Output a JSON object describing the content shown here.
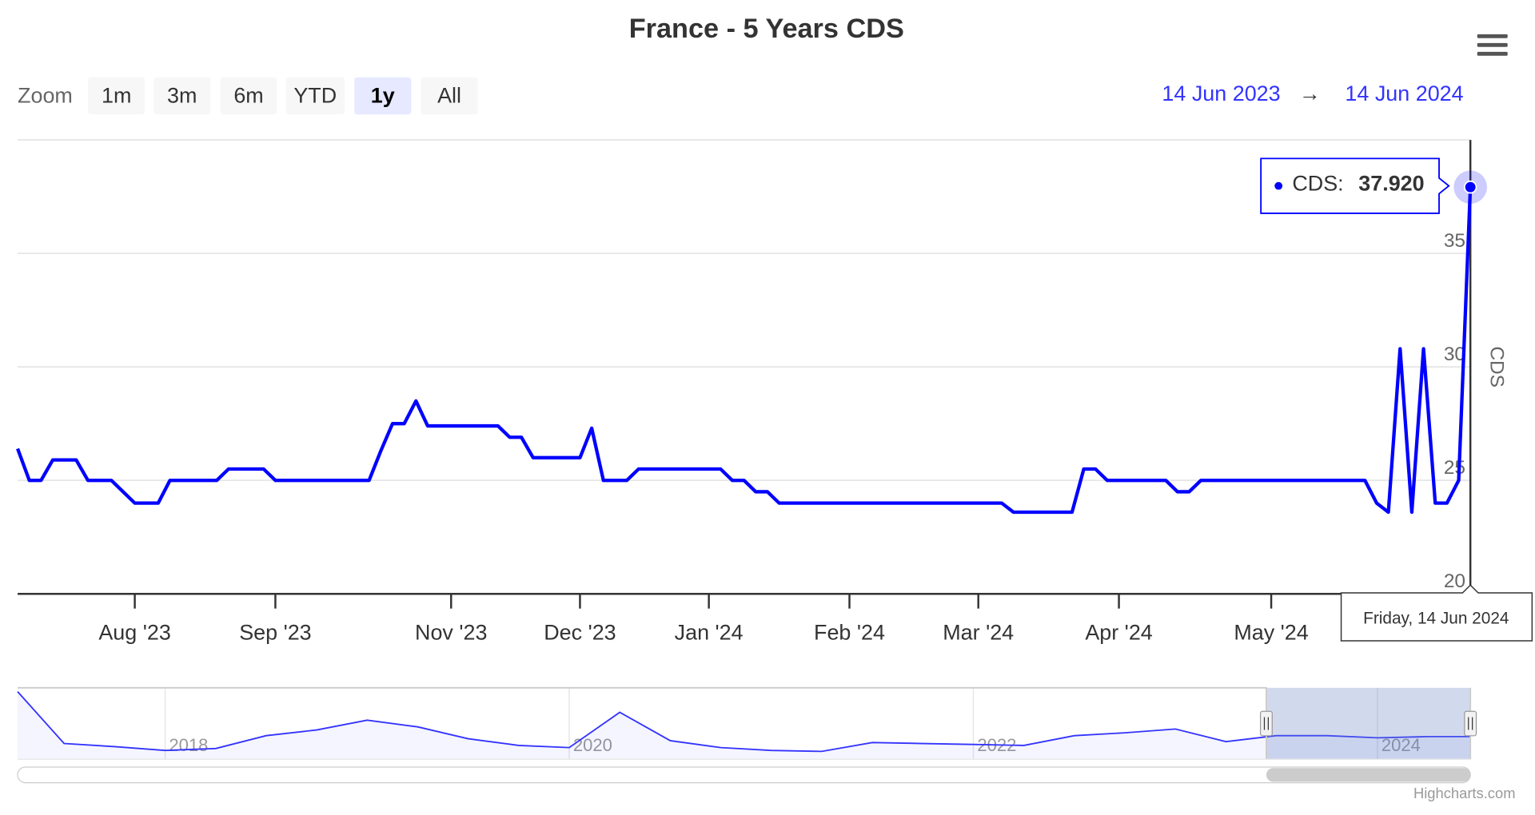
{
  "chart_data": {
    "type": "line",
    "title": "France - 5 Years CDS",
    "y_label": "CDS",
    "categories": [
      null,
      null,
      null,
      null,
      null,
      null,
      null,
      null,
      null,
      null,
      "Aug '23",
      null,
      null,
      null,
      null,
      null,
      null,
      null,
      null,
      null,
      null,
      null,
      "Sep '23",
      null,
      null,
      null,
      null,
      null,
      null,
      null,
      null,
      null,
      null,
      null,
      null,
      null,
      null,
      "Nov '23",
      null,
      null,
      null,
      null,
      null,
      null,
      null,
      null,
      null,
      null,
      "Dec '23",
      null,
      null,
      null,
      null,
      null,
      null,
      null,
      null,
      null,
      null,
      "Jan '24",
      null,
      null,
      null,
      null,
      null,
      null,
      null,
      null,
      null,
      null,
      null,
      "Feb '24",
      null,
      null,
      null,
      null,
      null,
      null,
      null,
      null,
      null,
      null,
      "Mar '24",
      null,
      null,
      null,
      null,
      null,
      null,
      null,
      null,
      null,
      null,
      null,
      "Apr '24",
      null,
      null,
      null,
      null,
      null,
      null,
      null,
      null,
      null,
      null,
      null,
      null,
      "May '24",
      null,
      null,
      null,
      null,
      null,
      null,
      null,
      null,
      null,
      null,
      null,
      null,
      null,
      null,
      null,
      null,
      null
    ],
    "series": [
      {
        "name": "CDS",
        "color": "#0000ff",
        "values": [
          26.4,
          25,
          25,
          25.9,
          25.9,
          25.9,
          25,
          25,
          25,
          24.5,
          24,
          24,
          24,
          25,
          25,
          25,
          25,
          25,
          25.5,
          25.5,
          25.5,
          25.5,
          25,
          25,
          25,
          25,
          25,
          25,
          25,
          25,
          25,
          26.3,
          27.5,
          27.5,
          28.5,
          27.4,
          27.4,
          27.4,
          27.4,
          27.4,
          27.4,
          27.4,
          26.9,
          26.9,
          26,
          26,
          26,
          26,
          26,
          27.3,
          25,
          25,
          25,
          25.5,
          25.5,
          25.5,
          25.5,
          25.5,
          25.5,
          25.5,
          25.5,
          25,
          25,
          24.5,
          24.5,
          24,
          24,
          24,
          24,
          24,
          24,
          24,
          24,
          24,
          24,
          24,
          24,
          24,
          24,
          24,
          24,
          24,
          24,
          24,
          24,
          23.6,
          23.6,
          23.6,
          23.6,
          23.6,
          23.6,
          25.5,
          25.5,
          25,
          25,
          25,
          25,
          25,
          25,
          24.5,
          24.5,
          25,
          25,
          25,
          25,
          25,
          25,
          25,
          25,
          25,
          25,
          25,
          25,
          25,
          25,
          25,
          24,
          23.6,
          30.8,
          23.6,
          30.8,
          24,
          24,
          25,
          37.92
        ]
      }
    ],
    "ylim": [
      20,
      40
    ],
    "yticks": [
      20,
      25,
      30,
      35
    ],
    "grid": true,
    "tooltip": {
      "label": "CDS:",
      "value": "37.920",
      "date": "Friday, 14 Jun 2024"
    },
    "range_selector": {
      "zoom_label": "Zoom",
      "buttons": [
        "1m",
        "3m",
        "6m",
        "YTD",
        "1y",
        "All"
      ],
      "selected": 4,
      "from": "14 Jun 2023",
      "arrow": "→",
      "to": "14 Jun 2024"
    },
    "navigator": {
      "color": "#3333ff",
      "x": [
        2017.27,
        2017.5,
        2017.75,
        2018,
        2018.25,
        2018.5,
        2018.75,
        2019,
        2019.25,
        2019.5,
        2019.75,
        2020,
        2020.25,
        2020.5,
        2020.75,
        2021,
        2021.25,
        2021.5,
        2021.75,
        2022,
        2022.25,
        2022.5,
        2022.75,
        2023,
        2023.25,
        2023.5,
        2023.75,
        2024,
        2024.25,
        2024.46
      ],
      "values": [
        43.4,
        21.6,
        20.3,
        18.7,
        19.5,
        24.9,
        27.3,
        31.4,
        28.6,
        23.6,
        20.8,
        19.9,
        34.7,
        22.8,
        19.9,
        18.7,
        18.3,
        22.0,
        21.6,
        21.2,
        20.8,
        24.9,
        26.1,
        27.7,
        22.4,
        24.9,
        24.9,
        24.0,
        24.5,
        24.5
      ],
      "xlim": [
        2017.27,
        2024.46
      ],
      "ylim": [
        15,
        45
      ],
      "xticks": [
        2018,
        2020,
        2022,
        2024
      ],
      "selected": [
        2023.45,
        2024.46
      ]
    },
    "credits": "Highcharts.com"
  }
}
